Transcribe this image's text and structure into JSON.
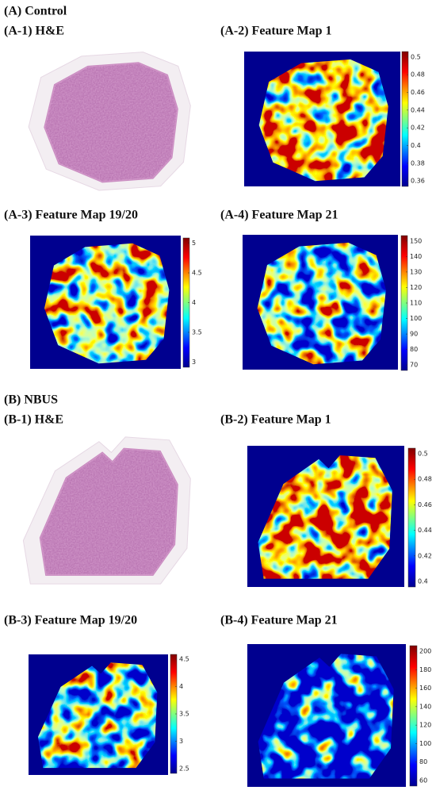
{
  "sections": [
    {
      "title": "(A) Control",
      "panels": [
        {
          "label": "(A-1) H&E"
        },
        {
          "label": "(A-2) Feature Map 1",
          "colorbar": [
            0.5,
            0.48,
            0.46,
            0.44,
            0.42,
            0.4,
            0.38,
            0.36
          ]
        },
        {
          "label": "(A-3) Feature Map 19/20",
          "colorbar": [
            5,
            4.5,
            4,
            3.5,
            3
          ]
        },
        {
          "label": "(A-4) Feature Map 21",
          "colorbar": [
            150,
            140,
            130,
            120,
            110,
            100,
            90,
            80,
            70
          ]
        }
      ]
    },
    {
      "title": "(B) NBUS",
      "panels": [
        {
          "label": "(B-1) H&E"
        },
        {
          "label": "(B-2) Feature Map 1",
          "colorbar": [
            0.5,
            0.48,
            0.46,
            0.44,
            0.42,
            0.4
          ]
        },
        {
          "label": "(B-3) Feature Map 19/20",
          "colorbar": [
            4.5,
            4,
            3.5,
            3,
            2.5
          ]
        },
        {
          "label": "(B-4) Feature Map 21",
          "colorbar": [
            200,
            180,
            160,
            140,
            120,
            100,
            80,
            60
          ]
        }
      ]
    }
  ]
}
